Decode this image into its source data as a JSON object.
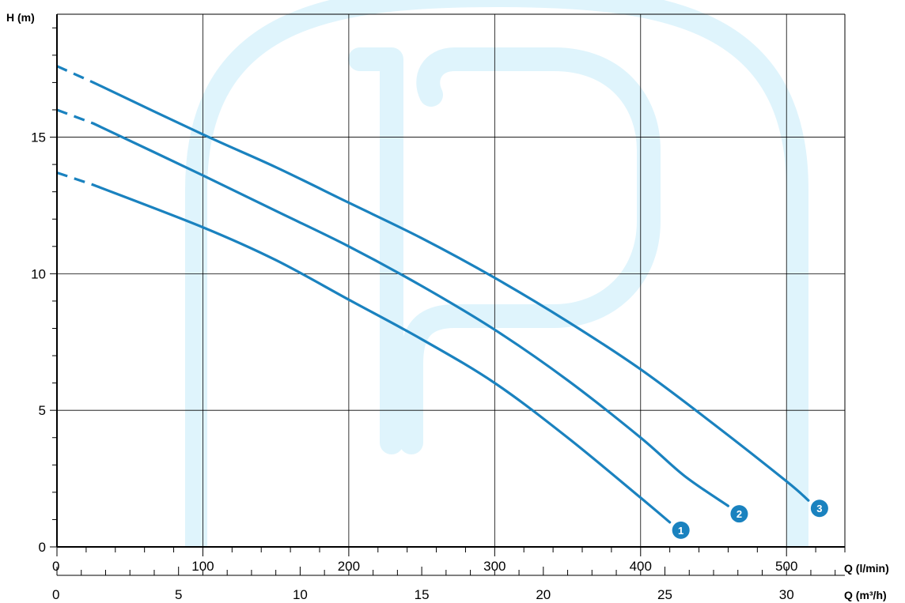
{
  "chart_data": {
    "type": "line",
    "ylabel": "H (m)",
    "xlabel": "Q (l/min)",
    "xlabel_secondary": "Q (m³/h)",
    "xlim": [
      0,
      540
    ],
    "ylim": [
      0,
      19.5
    ],
    "y_ticks": [
      0,
      5,
      10,
      15
    ],
    "y_minor_step": 1,
    "x_ticks": [
      0,
      100,
      200,
      300,
      400,
      500
    ],
    "x_minor_step": 20,
    "x_secondary_ticks": [
      0,
      5,
      10,
      15,
      20,
      25,
      30
    ],
    "x_secondary_minor_step": 1,
    "grid": true,
    "line_color": "#1a82bf",
    "watermark_color": "#dff4fc",
    "series": [
      {
        "name": "1",
        "dashed_to": 25,
        "x": [
          0,
          25,
          100,
          150,
          200,
          250,
          300,
          350,
          400,
          420
        ],
        "y": [
          13.7,
          13.25,
          11.7,
          10.5,
          9.05,
          7.6,
          6.0,
          4.0,
          1.8,
          0.9
        ]
      },
      {
        "name": "2",
        "dashed_to": 25,
        "x": [
          0,
          25,
          100,
          150,
          200,
          250,
          300,
          350,
          400,
          430,
          460
        ],
        "y": [
          16.0,
          15.5,
          13.6,
          12.3,
          11.0,
          9.55,
          7.95,
          6.1,
          4.0,
          2.6,
          1.5
        ]
      },
      {
        "name": "3",
        "dashed_to": 25,
        "x": [
          0,
          25,
          100,
          150,
          200,
          250,
          300,
          350,
          400,
          450,
          500,
          515
        ],
        "y": [
          17.6,
          17.0,
          15.1,
          13.9,
          12.6,
          11.3,
          9.85,
          8.25,
          6.5,
          4.5,
          2.4,
          1.7
        ]
      }
    ]
  }
}
